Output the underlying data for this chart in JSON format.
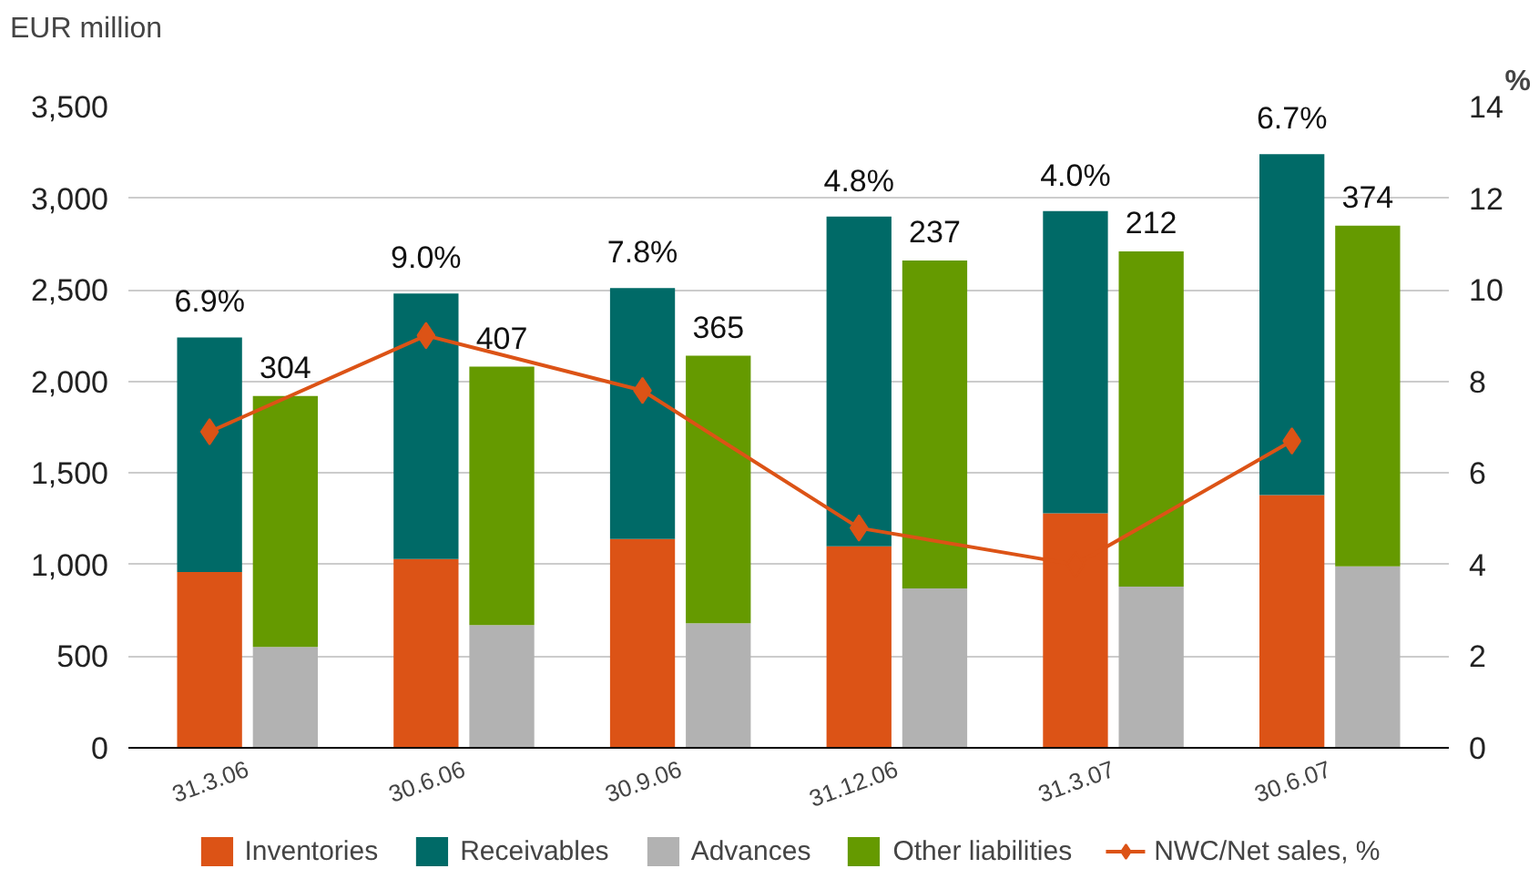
{
  "chart_data": {
    "type": "bar",
    "stacked": true,
    "ylabel": "EUR million",
    "y2label": "%",
    "categories": [
      "31.3.06",
      null,
      "30.6.06",
      null,
      "30.9.06",
      null,
      "31.12.06",
      null,
      "31.3.07",
      null,
      "30.6.07",
      null
    ],
    "series": [
      {
        "name": "Inventories",
        "color": "#dc5316",
        "values": [
          960,
          null,
          1030,
          null,
          1140,
          null,
          1100,
          null,
          1280,
          null,
          1380,
          null
        ]
      },
      {
        "name": "Receivables",
        "color": "#006a67",
        "values": [
          1280,
          null,
          1450,
          null,
          1370,
          null,
          1800,
          null,
          1650,
          null,
          1860,
          null
        ]
      },
      {
        "name": "Advances",
        "color": "#b2b2b2",
        "values": [
          null,
          550,
          null,
          670,
          null,
          680,
          null,
          870,
          null,
          880,
          null,
          990
        ]
      },
      {
        "name": "Other liabilities",
        "color": "#659a00",
        "values": [
          null,
          1370,
          null,
          1410,
          null,
          1460,
          null,
          1790,
          null,
          1830,
          null,
          1860
        ]
      },
      {
        "name": "NWC/Net sales, %",
        "color": "#dc5316",
        "type": "line",
        "axis": "y2",
        "marker": "diamond",
        "line_style": "solid",
        "x": [
          "31.3.06",
          "30.6.06",
          "30.9.06",
          "31.12.06",
          "31.3.07",
          "30.6.07"
        ],
        "values": [
          6.9,
          9.0,
          7.8,
          4.8,
          4.0,
          6.7
        ]
      }
    ],
    "annotations": [
      {
        "text": "6.9%",
        "x": "31.3.06",
        "y": 2240
      },
      {
        "text": "9.0%",
        "x": "30.6.06",
        "y": 2480
      },
      {
        "text": "7.8%",
        "x": "30.9.06",
        "y": 2510
      },
      {
        "text": "4.8%",
        "x": "31.12.06",
        "y": 2900
      },
      {
        "text": "4.0%",
        "x": "31.3.07",
        "y": 2930
      },
      {
        "text": "6.7%",
        "x": "30.6.07",
        "y": 3240
      },
      "304",
      "407",
      "365",
      "237",
      "212",
      "374"
    ],
    "ylim": [
      0,
      3500
    ],
    "yticks": [
      {
        "value": 0,
        "label": "0"
      },
      {
        "value": 500,
        "label": "500"
      },
      {
        "value": 1000,
        "label": "1,000"
      },
      {
        "value": 1500,
        "label": "1,500"
      },
      {
        "value": 2000,
        "label": "2,000"
      },
      {
        "value": 2500,
        "label": "2,500"
      },
      {
        "value": 3000,
        "label": "3,000"
      },
      {
        "value": 3500,
        "label": "3,500"
      }
    ],
    "y2lim": [
      0,
      14
    ],
    "y2ticks": [
      0,
      2,
      4,
      6,
      8,
      10,
      12,
      14
    ],
    "grid": "y",
    "legend": "bottom"
  }
}
